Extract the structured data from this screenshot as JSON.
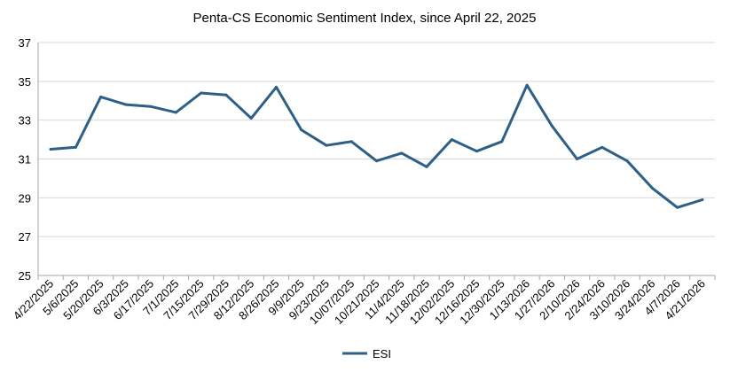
{
  "chart_data": {
    "type": "line",
    "title": "Penta-CS Economic Sentiment Index, since April 22, 2025",
    "xlabel": "",
    "ylabel": "",
    "categories": [
      "4/22/2025",
      "5/6/2025",
      "5/20/2025",
      "6/3/2025",
      "6/17/2025",
      "7/1/2025",
      "7/15/2025",
      "7/29/2025",
      "8/12/2025",
      "8/26/2025",
      "9/9/2025",
      "9/23/2025",
      "10/07/2025",
      "10/21/2025",
      "11/4/2025",
      "11/18/2025",
      "12/02/2025",
      "12/16/2025",
      "12/30/2025",
      "1/13/2026",
      "1/27/2026",
      "2/10/2026",
      "2/24/2026",
      "3/10/2026",
      "3/24/2026",
      "4/7/2026",
      "4/21/2026"
    ],
    "series": [
      {
        "name": "ESI",
        "color": "#2e5f86",
        "values": [
          31.5,
          31.6,
          34.2,
          33.8,
          33.7,
          33.4,
          34.4,
          34.3,
          33.1,
          34.7,
          32.5,
          31.7,
          31.9,
          30.9,
          31.3,
          30.6,
          32.0,
          31.4,
          31.9,
          34.8,
          32.7,
          31.0,
          31.6,
          30.9,
          29.5,
          28.5,
          28.9
        ]
      }
    ],
    "ylim": [
      25,
      37
    ],
    "yticks": [
      "25",
      "27",
      "29",
      "31",
      "33",
      "35",
      "37"
    ],
    "grid": true,
    "legend_position": "bottom"
  }
}
